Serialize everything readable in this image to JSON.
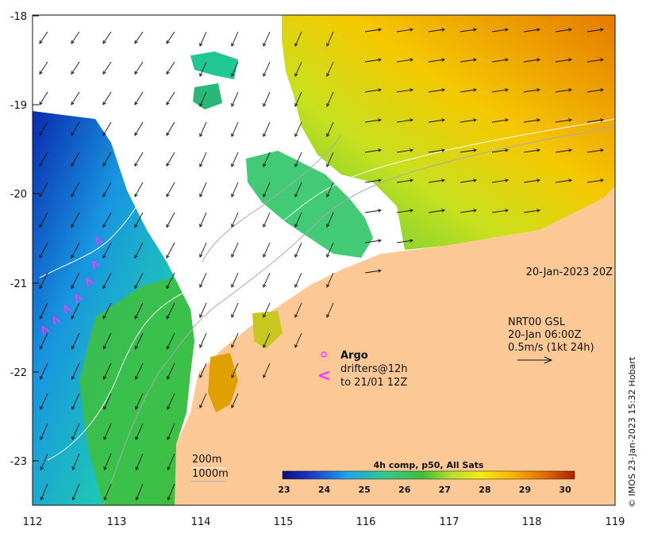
{
  "map": {
    "lat_ticks": [
      "-18",
      "-19",
      "-20",
      "-21",
      "-22",
      "-23"
    ],
    "lon_ticks": [
      "112",
      "113",
      "114",
      "115",
      "116",
      "117",
      "118",
      "119"
    ],
    "timestamp": "20-Jan-2023 20Z",
    "current_label": {
      "line1": "NRT00 GSL",
      "line2": "20-Jan 06:00Z",
      "line3": "0.5m/s (1kt 24h)"
    },
    "argo_label": "Argo",
    "drifters_label_1": "drifters@12h",
    "drifters_label_2": "to 21/01 12Z",
    "drifter_symbol": "<",
    "argo_symbol": "o",
    "isobath_1": "200m",
    "isobath_2": "1000m",
    "credit": "© IMOS 23-Jan-2023 15:32 Hobart"
  },
  "colorbar": {
    "title": "4h comp, p50, All Sats",
    "labels": [
      "23",
      "24",
      "25",
      "26",
      "27",
      "28",
      "29",
      "30"
    ]
  },
  "colors": {
    "land": "#FCC996",
    "drifter": "#FF33FF",
    "sst_cold": "#0a1e8c",
    "sst_warm": "#d43a00"
  }
}
